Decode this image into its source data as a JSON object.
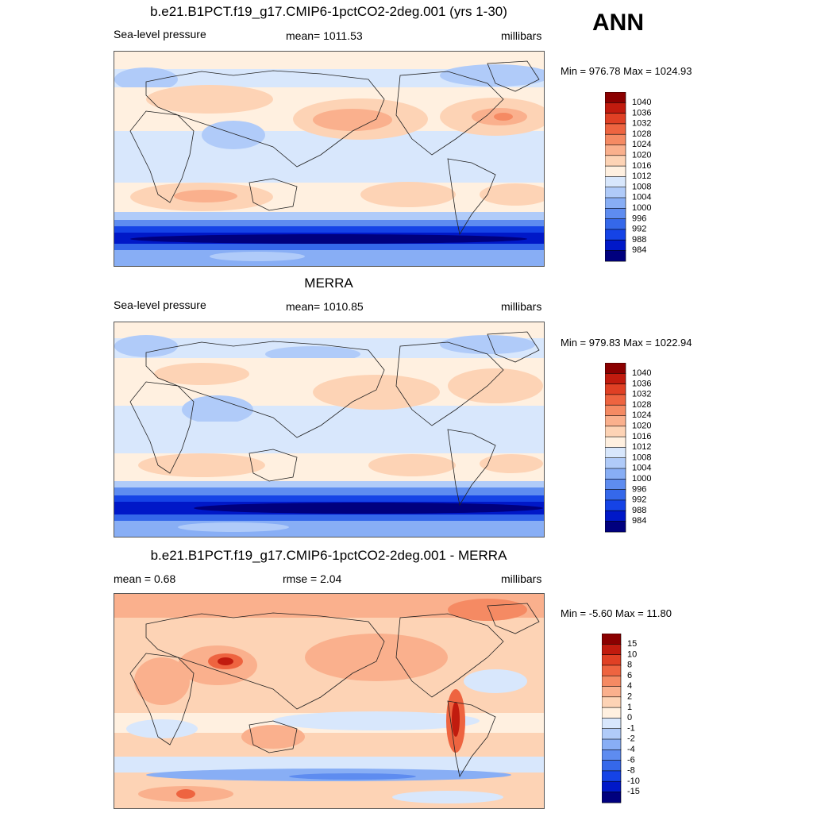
{
  "season": "ANN",
  "colors": {
    "abs": [
      "#00007e",
      "#0018c8",
      "#1543e6",
      "#3568ea",
      "#5e8cf0",
      "#88aef5",
      "#b0cbf9",
      "#d8e7fc",
      "#fff0e0",
      "#fdd3b5",
      "#fab08d",
      "#f58a63",
      "#ee6440",
      "#e04024",
      "#c11b0e",
      "#8b0000"
    ],
    "diff": [
      "#00007e",
      "#0018c8",
      "#1543e6",
      "#3568ea",
      "#5e8cf0",
      "#88aef5",
      "#b0cbf9",
      "#d8e7fc",
      "#fff0e0",
      "#fdd3b5",
      "#fab08d",
      "#f58a63",
      "#ee6440",
      "#e04024",
      "#c11b0e",
      "#8b0000"
    ]
  },
  "panels": [
    {
      "id": "model",
      "title": "b.e21.B1PCT.f19_g17.CMIP6-1pctCO2-2deg.001 (yrs 1-30)",
      "left": "Sea-level pressure",
      "center": "mean= 1011.53",
      "right": "millibars",
      "minmax": "Min = 976.78 Max = 1024.93",
      "levels": [
        "984",
        "988",
        "992",
        "996",
        "1000",
        "1004",
        "1008",
        "1012",
        "1016",
        "1020",
        "1024",
        "1028",
        "1032",
        "1036",
        "1040"
      ]
    },
    {
      "id": "obs",
      "title": "MERRA",
      "left": "Sea-level pressure",
      "center": "mean= 1010.85",
      "right": "millibars",
      "minmax": "Min = 979.83 Max = 1022.94",
      "levels": [
        "984",
        "988",
        "992",
        "996",
        "1000",
        "1004",
        "1008",
        "1012",
        "1016",
        "1020",
        "1024",
        "1028",
        "1032",
        "1036",
        "1040"
      ]
    },
    {
      "id": "diff",
      "title": "b.e21.B1PCT.f19_g17.CMIP6-1pctCO2-2deg.001 - MERRA",
      "left": "mean =   0.68",
      "center": "rmse =   2.04",
      "right": "millibars",
      "minmax": "Min =  -5.60 Max =  11.80",
      "levels": [
        "-15",
        "-10",
        "-8",
        "-6",
        "-4",
        "-2",
        "-1",
        "0",
        "1",
        "2",
        "4",
        "6",
        "8",
        "10",
        "15"
      ]
    }
  ]
}
